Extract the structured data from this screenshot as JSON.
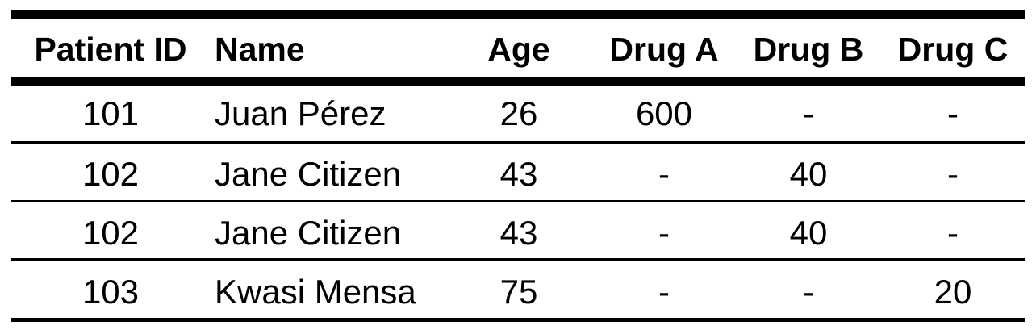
{
  "table": {
    "headers": {
      "patient_id": "Patient ID",
      "name": "Name",
      "age": "Age",
      "drug_a": "Drug A",
      "drug_b": "Drug B",
      "drug_c": "Drug C"
    },
    "rows": [
      {
        "patient_id": "101",
        "name": "Juan Pérez",
        "age": "26",
        "drug_a": "600",
        "drug_b": "-",
        "drug_c": "-"
      },
      {
        "patient_id": "102",
        "name": "Jane Citizen",
        "age": "43",
        "drug_a": "-",
        "drug_b": "40",
        "drug_c": "-"
      },
      {
        "patient_id": "102",
        "name": "Jane Citizen",
        "age": "43",
        "drug_a": "-",
        "drug_b": "40",
        "drug_c": "-"
      },
      {
        "patient_id": "103",
        "name": "Kwasi Mensa",
        "age": "75",
        "drug_a": "-",
        "drug_b": "-",
        "drug_c": "20"
      }
    ]
  }
}
